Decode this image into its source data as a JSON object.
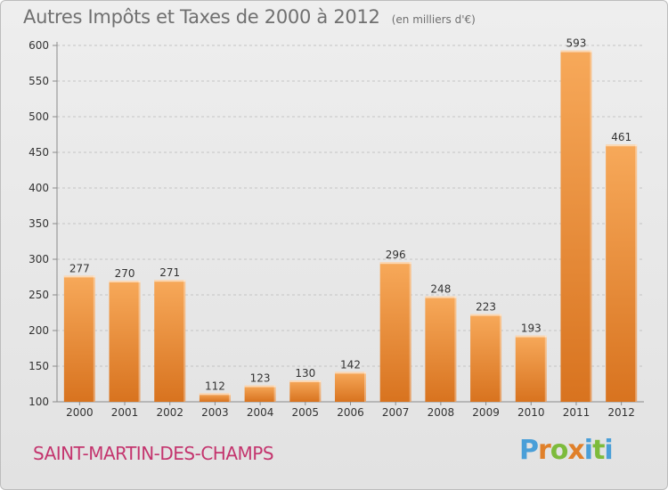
{
  "header": {
    "title": "Autres Impôts et Taxes de 2000 à 2012",
    "subtitle": "(en milliers d'€)"
  },
  "footer": {
    "commune": "SAINT-MARTIN-DES-CHAMPS",
    "logo_text": "Proxiti"
  },
  "colors": {
    "bar_light": "#f7a95a",
    "bar_dark": "#d8731f",
    "commune_text": "#c4356e",
    "title_text": "#707070",
    "logo": [
      "#4a9fd8",
      "#e0802a",
      "#7dbb3c",
      "#e0802a",
      "#4a9fd8",
      "#7dbb3c",
      "#4a9fd8"
    ]
  },
  "chart_data": {
    "type": "bar",
    "title": "Autres Impôts et Taxes de 2000 à 2012",
    "subtitle": "(en milliers d'€)",
    "categories": [
      "2000",
      "2001",
      "2002",
      "2003",
      "2004",
      "2005",
      "2006",
      "2007",
      "2008",
      "2009",
      "2010",
      "2011",
      "2012"
    ],
    "values": [
      277,
      270,
      271,
      112,
      123,
      130,
      142,
      296,
      248,
      223,
      193,
      593,
      461
    ],
    "ylim": [
      100,
      600
    ],
    "yticks": [
      100,
      150,
      200,
      250,
      300,
      350,
      400,
      450,
      500,
      550,
      600
    ],
    "grid": "horizontal-dashed"
  }
}
